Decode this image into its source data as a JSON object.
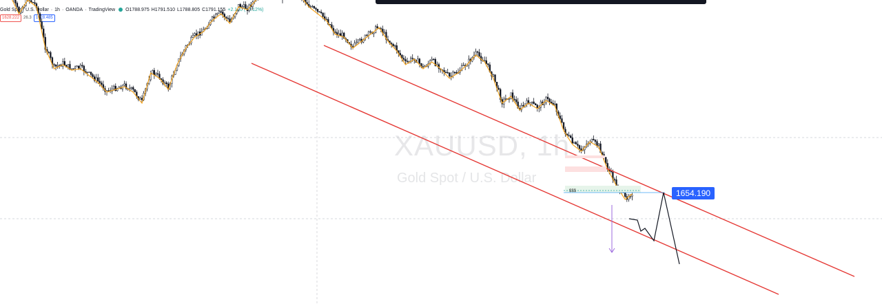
{
  "header": {
    "symbol_name": "Gold Spot / U.S. Dollar",
    "sep1": "·",
    "interval": "1h",
    "sep2": "·",
    "broker": "OANDA",
    "sep3": "·",
    "platform": "TradingView",
    "open": "O1788.975",
    "high": "H1791.510",
    "low": "L1788.805",
    "close": "C1791.155",
    "change": "+2.180 (+0.12%)",
    "change_color": "#26a69a"
  },
  "quote": {
    "sell_price": "1628.222",
    "spread": "26.3",
    "buy_price": "1628.485"
  },
  "watermark": {
    "symbol": "XAUUSD, 1h",
    "description": "Gold Spot / U.S. Dollar"
  },
  "annotations": {
    "price_label": "1654.190",
    "liquidity_label": "$$$"
  },
  "colors": {
    "channel": "#e53935",
    "ma": "#f5a623",
    "candle": "#131722",
    "target_arrow": "#9c6ade",
    "label_bg": "#2962ff"
  },
  "chart_data": {
    "type": "candlestick",
    "symbol": "XAUUSD",
    "interval": "1h",
    "title": "Gold Spot / U.S. Dollar",
    "indicators": [
      "moving average"
    ],
    "drawings": [
      "descending parallel channel",
      "projected zig-zag path",
      "downward target arrow",
      "horizontal liquidity level"
    ],
    "highlighted_price": 1654.19,
    "close_series_approx": [
      1800,
      1798,
      1785,
      1795,
      1790,
      1760,
      1745,
      1748,
      1744,
      1745,
      1740,
      1735,
      1728,
      1730,
      1732,
      1728,
      1720,
      1742,
      1738,
      1730,
      1748,
      1760,
      1768,
      1772,
      1780,
      1785,
      1778,
      1790,
      1788,
      1795,
      1800,
      1802,
      1796,
      1805,
      1798,
      1790,
      1785,
      1780,
      1770,
      1768,
      1760,
      1765,
      1770,
      1775,
      1765,
      1758,
      1748,
      1752,
      1745,
      1750,
      1745,
      1738,
      1742,
      1748,
      1755,
      1750,
      1738,
      1720,
      1725,
      1715,
      1720,
      1716,
      1722,
      1718,
      1700,
      1690,
      1685,
      1692,
      1688,
      1672,
      1660,
      1650,
      1655
    ]
  }
}
